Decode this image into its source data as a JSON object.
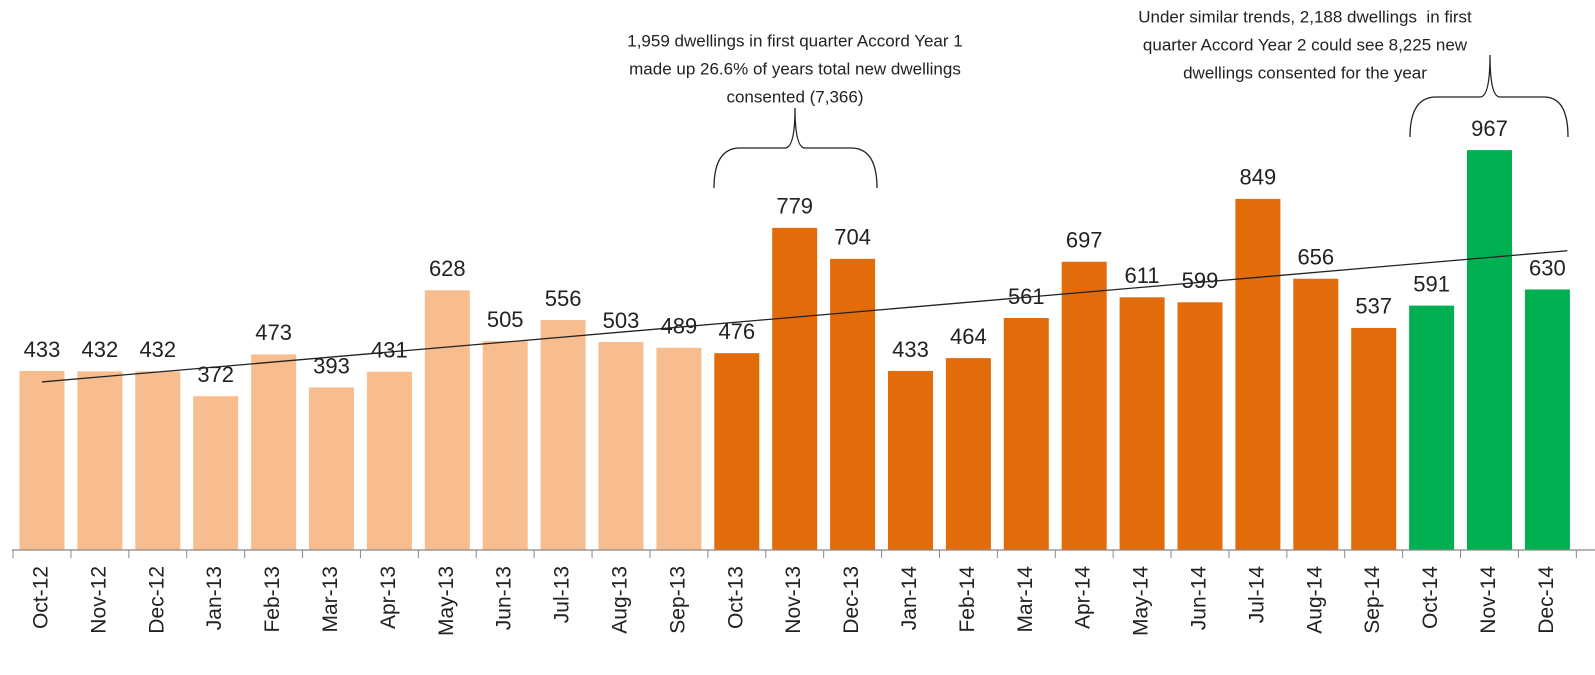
{
  "chart_data": {
    "type": "bar",
    "categories": [
      "Oct-12",
      "Nov-12",
      "Dec-12",
      "Jan-13",
      "Feb-13",
      "Mar-13",
      "Apr-13",
      "May-13",
      "Jun-13",
      "Jul-13",
      "Aug-13",
      "Sep-13",
      "Oct-13",
      "Nov-13",
      "Dec-13",
      "Jan-14",
      "Feb-14",
      "Mar-14",
      "Apr-14",
      "May-14",
      "Jun-14",
      "Jul-14",
      "Aug-14",
      "Sep-14",
      "Oct-14",
      "Nov-14",
      "Dec-14"
    ],
    "values": [
      433,
      432,
      432,
      372,
      473,
      393,
      431,
      628,
      505,
      556,
      503,
      489,
      476,
      779,
      704,
      433,
      464,
      561,
      697,
      611,
      599,
      849,
      656,
      537,
      591,
      967,
      630
    ],
    "colors": [
      "#f8bd8e",
      "#f8bd8e",
      "#f8bd8e",
      "#f8bd8e",
      "#f8bd8e",
      "#f8bd8e",
      "#f8bd8e",
      "#f8bd8e",
      "#f8bd8e",
      "#f8bd8e",
      "#f8bd8e",
      "#f8bd8e",
      "#e36c0a",
      "#e36c0a",
      "#e36c0a",
      "#e36c0a",
      "#e36c0a",
      "#e36c0a",
      "#e36c0a",
      "#e36c0a",
      "#e36c0a",
      "#e36c0a",
      "#e36c0a",
      "#e36c0a",
      "#00b050",
      "#00b050",
      "#00b050"
    ],
    "ylim": [
      0,
      1330
    ],
    "trendline": true,
    "annotations": [
      {
        "lines": [
          "1,959 dwellings in first quarter Accord Year 1",
          "made up 26.6% of years total new dwellings",
          "consented (7,366)"
        ]
      },
      {
        "lines": [
          "Under similar trends, 2,188 dwellings  in first",
          "quarter Accord Year 2 could see 8,225 new",
          "dwellings consented for the year"
        ]
      }
    ]
  }
}
